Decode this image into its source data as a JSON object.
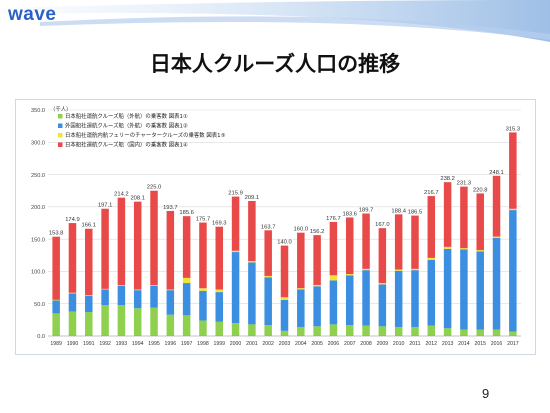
{
  "slide": {
    "logo": "wave",
    "title": "日本人クルーズ人口の推移",
    "page_number": "9"
  },
  "colors": {
    "logo": "#2a62c4",
    "series_green": "#8fd14f",
    "series_blue": "#3b8ee0",
    "series_yellow": "#f2e33a",
    "series_red": "#e84a4a"
  },
  "chart_data": {
    "type": "bar",
    "stacked": true,
    "unit_label": "（千人）",
    "categories": [
      "1989",
      "1990",
      "1991",
      "1992",
      "1993",
      "1994",
      "1995",
      "1996",
      "1997",
      "1998",
      "1999",
      "2000",
      "2001",
      "2002",
      "2003",
      "2004",
      "2005",
      "2006",
      "2007",
      "2008",
      "2009",
      "2010",
      "2011",
      "2012",
      "2013",
      "2014",
      "2015",
      "2016",
      "2017"
    ],
    "totals": [
      153.8,
      174.9,
      166.1,
      197.1,
      214.2,
      208.1,
      225.0,
      193.7,
      185.6,
      175.7,
      169.3,
      215.9,
      209.1,
      163.7,
      140.0,
      160.0,
      156.2,
      176.7,
      183.6,
      189.7,
      167.0,
      188.4,
      186.5,
      216.7,
      238.2,
      231.3,
      220.8,
      248.1,
      315.3
    ],
    "total_labels": [
      "153.8",
      "174.9",
      "166.1",
      "197.1",
      "214.2",
      "208.1",
      "225.0",
      "193.7",
      "185.6",
      "175.7",
      "169.3",
      "215.9",
      "209.1",
      "163.7",
      "140.0",
      "160.0",
      "156.2",
      "176.7",
      "183.6",
      "189.7",
      "167.0",
      "188.4",
      "186.5",
      "216.7",
      "238.2",
      "231.3",
      "220.8",
      "248.1",
      "315.3"
    ],
    "series": [
      {
        "name": "日本船社運航クルーズ船（外航）の乗客数 図表1①",
        "color": "#8fd14f",
        "values": [
          35,
          38,
          37,
          48,
          48,
          43,
          44,
          33,
          32,
          24,
          22,
          20,
          18,
          17,
          8,
          14,
          15,
          18,
          17,
          16,
          15,
          14,
          14,
          16,
          12,
          10,
          10,
          10,
          7
        ]
      },
      {
        "name": "外国船社運航クルーズ船（外航）の乗客数 図表1②",
        "color": "#3b8ee0",
        "values": [
          20,
          28,
          25,
          24,
          30,
          28,
          34,
          38,
          50,
          46,
          46,
          110,
          96,
          74,
          48,
          58,
          62,
          68,
          77,
          86,
          65,
          87,
          88,
          102,
          123,
          124,
          121,
          142,
          188
        ]
      },
      {
        "name": "日本船社運航内航フェリーのチャータークルーズの乗客数 図表1⑤",
        "color": "#f2e33a",
        "values": [
          1,
          1,
          1,
          1,
          1,
          1,
          1,
          1,
          8,
          4,
          4,
          2,
          2,
          2,
          4,
          2,
          2,
          8,
          2,
          2,
          2,
          2,
          2,
          3,
          3,
          2,
          2,
          2,
          2
        ]
      },
      {
        "name": "日本船社運航クルーズ船（国内）の乗客数 図表1④",
        "color": "#e84a4a",
        "values": [
          97.8,
          107.9,
          103.1,
          124.1,
          135.2,
          136.1,
          146,
          121.7,
          95.6,
          101.7,
          97.3,
          83.9,
          93.1,
          70.7,
          80,
          86,
          77.2,
          82.7,
          87.6,
          85.7,
          85,
          85.4,
          82.5,
          95.7,
          100.2,
          95.3,
          87.8,
          94.1,
          118.3
        ]
      }
    ],
    "ylim": [
      0,
      350
    ],
    "yticks": [
      "0.0",
      "50.0",
      "100.0",
      "150.0",
      "200.0",
      "250.0",
      "300.0",
      "350.0"
    ],
    "ytick_values": [
      0,
      50,
      100,
      150,
      200,
      250,
      300,
      350
    ],
    "grid": true,
    "legend_position": "top-left"
  }
}
